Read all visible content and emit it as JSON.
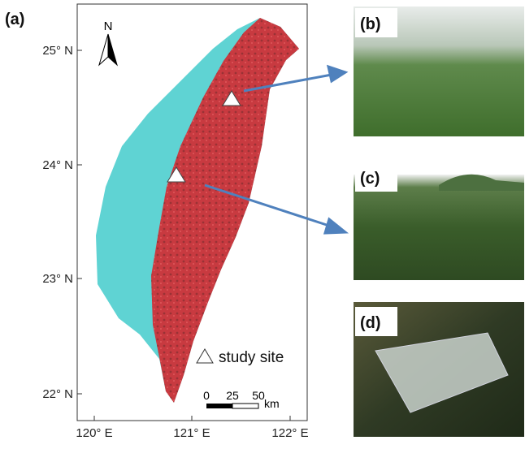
{
  "panel_labels": [
    "(a)",
    "(b)",
    "(c)",
    "(d)"
  ],
  "map": {
    "north": "N",
    "lat_labels": [
      "25° N",
      "24° N",
      "23° N",
      "22° N"
    ],
    "lon_labels": [
      "120° E",
      "121° E",
      "122° E"
    ],
    "legend": "study site",
    "scale_labels": [
      "0",
      "25",
      "50"
    ],
    "scale_unit": "km"
  }
}
